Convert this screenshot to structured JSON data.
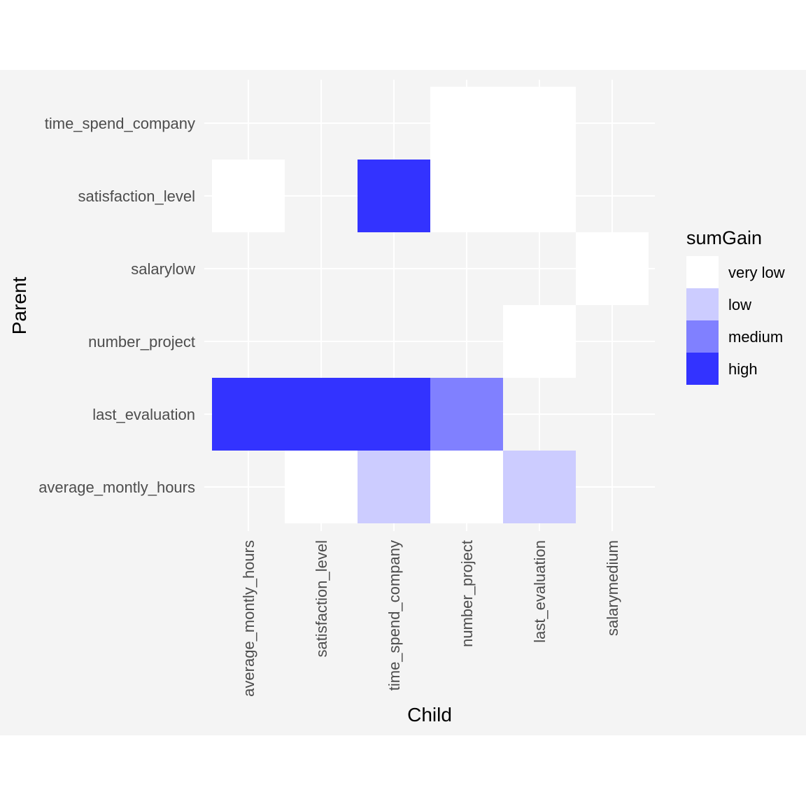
{
  "chart_data": {
    "type": "heatmap",
    "xlabel": "Child",
    "ylabel": "Parent",
    "x_categories": [
      "average_montly_hours",
      "satisfaction_level",
      "time_spend_company",
      "number_project",
      "last_evaluation",
      "salarymedium"
    ],
    "y_categories": [
      "average_montly_hours",
      "last_evaluation",
      "number_project",
      "salarylow",
      "satisfaction_level",
      "time_spend_company"
    ],
    "cells": [
      {
        "child": "number_project",
        "parent": "time_spend_company",
        "level": "very low"
      },
      {
        "child": "last_evaluation",
        "parent": "time_spend_company",
        "level": "very low"
      },
      {
        "child": "average_montly_hours",
        "parent": "satisfaction_level",
        "level": "very low"
      },
      {
        "child": "time_spend_company",
        "parent": "satisfaction_level",
        "level": "high"
      },
      {
        "child": "number_project",
        "parent": "satisfaction_level",
        "level": "very low"
      },
      {
        "child": "last_evaluation",
        "parent": "satisfaction_level",
        "level": "very low"
      },
      {
        "child": "salarymedium",
        "parent": "salarylow",
        "level": "very low"
      },
      {
        "child": "last_evaluation",
        "parent": "number_project",
        "level": "very low"
      },
      {
        "child": "average_montly_hours",
        "parent": "last_evaluation",
        "level": "high"
      },
      {
        "child": "satisfaction_level",
        "parent": "last_evaluation",
        "level": "high"
      },
      {
        "child": "time_spend_company",
        "parent": "last_evaluation",
        "level": "high"
      },
      {
        "child": "number_project",
        "parent": "last_evaluation",
        "level": "medium"
      },
      {
        "child": "satisfaction_level",
        "parent": "average_montly_hours",
        "level": "very low"
      },
      {
        "child": "time_spend_company",
        "parent": "average_montly_hours",
        "level": "low"
      },
      {
        "child": "number_project",
        "parent": "average_montly_hours",
        "level": "very low"
      },
      {
        "child": "last_evaluation",
        "parent": "average_montly_hours",
        "level": "low"
      }
    ],
    "legend": {
      "title": "sumGain",
      "placement": "right",
      "entries": [
        {
          "label": "very low",
          "color": "#ffffff"
        },
        {
          "label": "low",
          "color": "#ccccff"
        },
        {
          "label": "medium",
          "color": "#8080ff"
        },
        {
          "label": "high",
          "color": "#3333ff"
        }
      ]
    },
    "grid": true,
    "panel_background": "#f4f4f4",
    "gridline_color": "#ffffff"
  }
}
